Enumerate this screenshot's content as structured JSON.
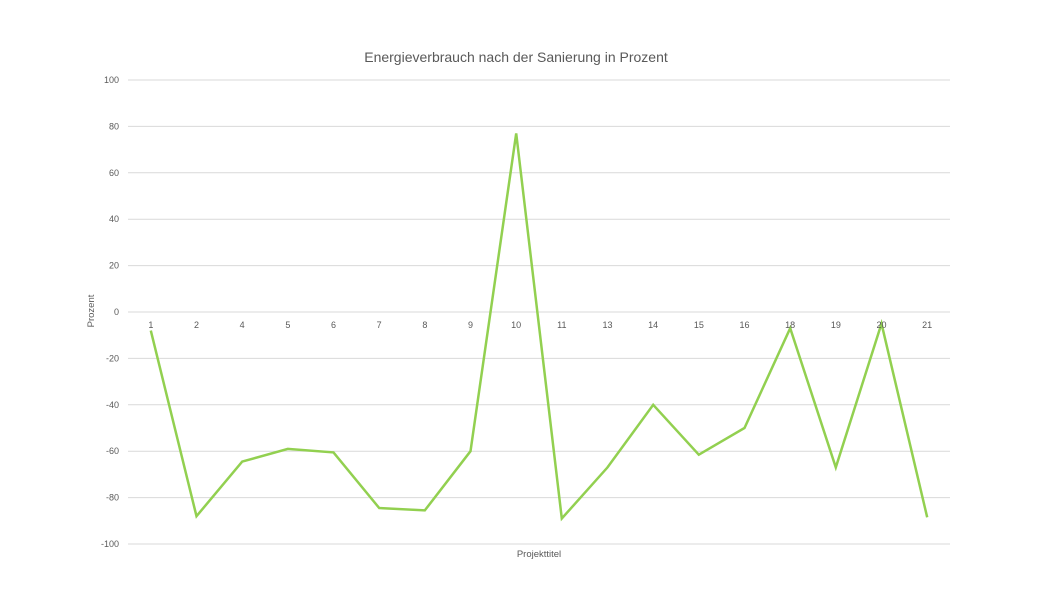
{
  "chart_data": {
    "type": "line",
    "title": "Energieverbrauch nach der Sanierung in Prozent",
    "xlabel": "Projekttitel",
    "ylabel": "Prozent",
    "ylim": [
      -100,
      100
    ],
    "y_ticks": [
      "100",
      "80",
      "60",
      "40",
      "20",
      "0",
      "-20",
      "-40",
      "-60",
      "-80",
      "-100"
    ],
    "categories": [
      "1",
      "2",
      "4",
      "5",
      "6",
      "7",
      "8",
      "9",
      "10",
      "11",
      "13",
      "14",
      "15",
      "16",
      "18",
      "19",
      "20",
      "21"
    ],
    "series": [
      {
        "values": [
          -8,
          -88,
          -64.5,
          -59,
          -60.5,
          -84.5,
          -85.5,
          -60,
          77,
          -89,
          -67,
          -40,
          -61.5,
          -50,
          -7,
          -67,
          -5,
          -88.5
        ]
      }
    ],
    "grid": true,
    "legend": "none",
    "line_color": "#92d050",
    "gridline_color": "#d9d9d9",
    "text_color": "#595959"
  }
}
